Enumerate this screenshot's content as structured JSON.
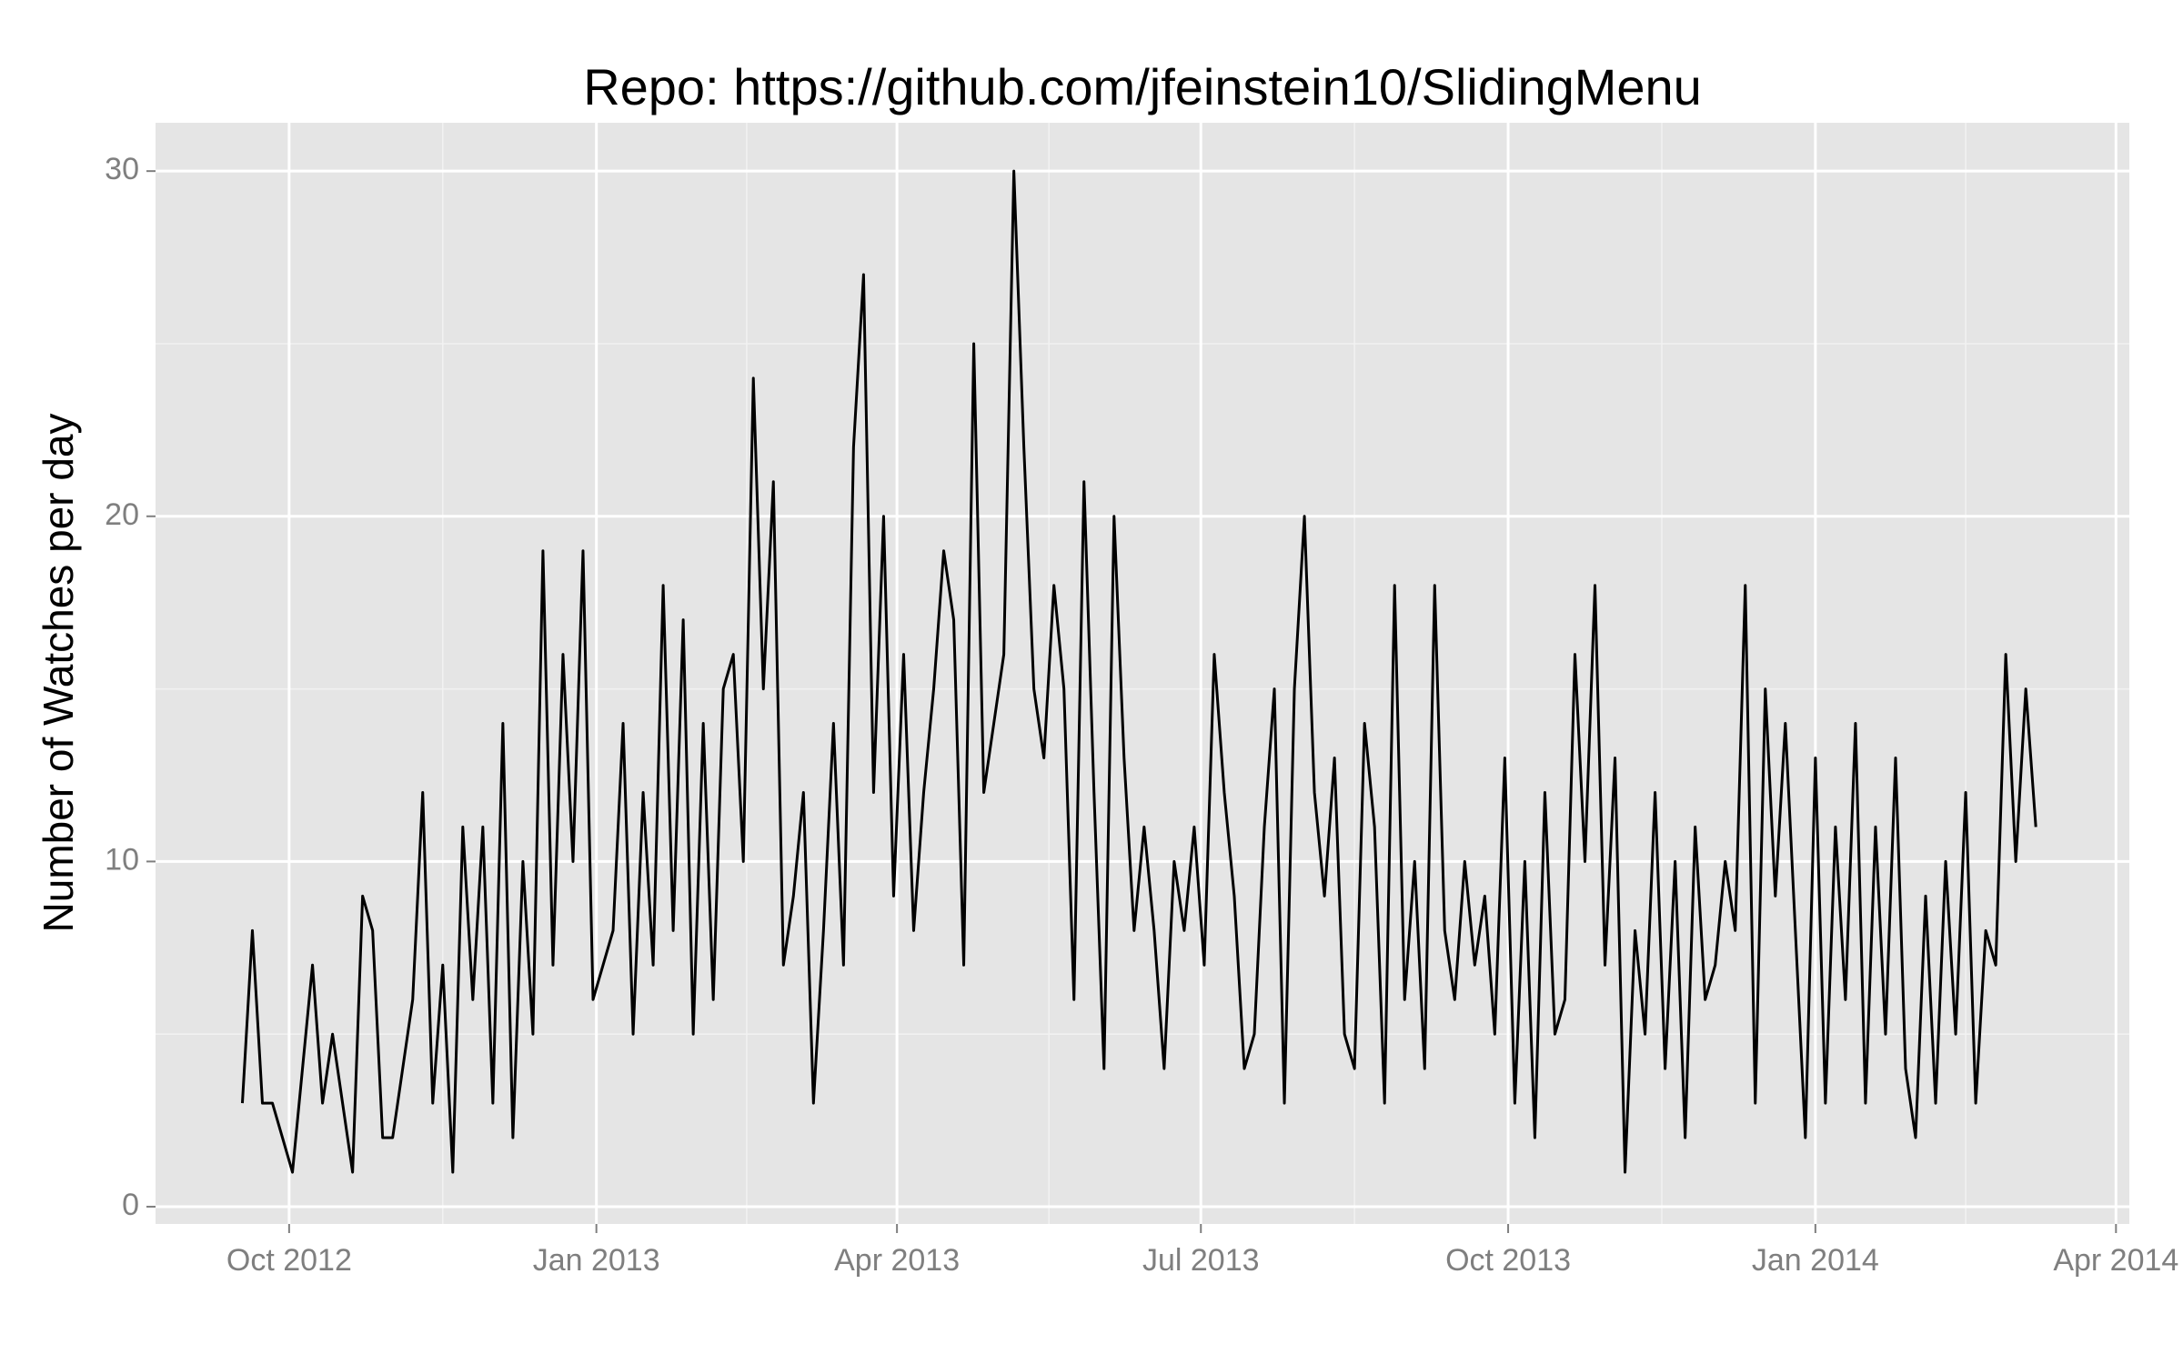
{
  "chart_data": {
    "type": "line",
    "title": "Repo: https://github.com/jfeinstein10/SlidingMenu",
    "y_label": "Number of Watches per day",
    "color": "#000000",
    "x": [
      "2012-09-17",
      "2012-09-20",
      "2012-09-23",
      "2012-09-26",
      "2012-09-29",
      "2012-10-02",
      "2012-10-05",
      "2012-10-08",
      "2012-10-11",
      "2012-10-14",
      "2012-10-17",
      "2012-10-20",
      "2012-10-23",
      "2012-10-26",
      "2012-10-29",
      "2012-11-01",
      "2012-11-04",
      "2012-11-07",
      "2012-11-10",
      "2012-11-13",
      "2012-11-16",
      "2012-11-19",
      "2012-11-22",
      "2012-11-25",
      "2012-11-28",
      "2012-12-01",
      "2012-12-04",
      "2012-12-07",
      "2012-12-10",
      "2012-12-13",
      "2012-12-16",
      "2012-12-19",
      "2012-12-22",
      "2012-12-25",
      "2012-12-28",
      "2012-12-31",
      "2013-01-03",
      "2013-01-06",
      "2013-01-09",
      "2013-01-12",
      "2013-01-15",
      "2013-01-18",
      "2013-01-21",
      "2013-01-24",
      "2013-01-27",
      "2013-01-30",
      "2013-02-02",
      "2013-02-05",
      "2013-02-08",
      "2013-02-11",
      "2013-02-14",
      "2013-02-17",
      "2013-02-20",
      "2013-02-23",
      "2013-02-26",
      "2013-03-01",
      "2013-03-04",
      "2013-03-07",
      "2013-03-10",
      "2013-03-13",
      "2013-03-16",
      "2013-03-19",
      "2013-03-22",
      "2013-03-25",
      "2013-03-28",
      "2013-03-31",
      "2013-04-03",
      "2013-04-06",
      "2013-04-09",
      "2013-04-12",
      "2013-04-15",
      "2013-04-18",
      "2013-04-21",
      "2013-04-24",
      "2013-04-27",
      "2013-04-30",
      "2013-05-03",
      "2013-05-06",
      "2013-05-09",
      "2013-05-12",
      "2013-05-15",
      "2013-05-18",
      "2013-05-21",
      "2013-05-24",
      "2013-05-27",
      "2013-05-30",
      "2013-06-02",
      "2013-06-05",
      "2013-06-08",
      "2013-06-11",
      "2013-06-14",
      "2013-06-17",
      "2013-06-20",
      "2013-06-23",
      "2013-06-26",
      "2013-06-29",
      "2013-07-02",
      "2013-07-05",
      "2013-07-08",
      "2013-07-11",
      "2013-07-14",
      "2013-07-17",
      "2013-07-20",
      "2013-07-23",
      "2013-07-26",
      "2013-07-29",
      "2013-08-01",
      "2013-08-04",
      "2013-08-07",
      "2013-08-10",
      "2013-08-13",
      "2013-08-16",
      "2013-08-19",
      "2013-08-22",
      "2013-08-25",
      "2013-08-28",
      "2013-08-31",
      "2013-09-03",
      "2013-09-06",
      "2013-09-09",
      "2013-09-12",
      "2013-09-15",
      "2013-09-18",
      "2013-09-21",
      "2013-09-24",
      "2013-09-27",
      "2013-09-30",
      "2013-10-03",
      "2013-10-06",
      "2013-10-09",
      "2013-10-12",
      "2013-10-15",
      "2013-10-18",
      "2013-10-21",
      "2013-10-24",
      "2013-10-27",
      "2013-10-30",
      "2013-11-02",
      "2013-11-05",
      "2013-11-08",
      "2013-11-11",
      "2013-11-14",
      "2013-11-17",
      "2013-11-20",
      "2013-11-23",
      "2013-11-26",
      "2013-11-29",
      "2013-12-02",
      "2013-12-05",
      "2013-12-08",
      "2013-12-11",
      "2013-12-14",
      "2013-12-17",
      "2013-12-20",
      "2013-12-23",
      "2013-12-26",
      "2013-12-29",
      "2014-01-01",
      "2014-01-04",
      "2014-01-07",
      "2014-01-10",
      "2014-01-13",
      "2014-01-16",
      "2014-01-19",
      "2014-01-22",
      "2014-01-25",
      "2014-01-28",
      "2014-01-31",
      "2014-02-03",
      "2014-02-06",
      "2014-02-09",
      "2014-02-12",
      "2014-02-15",
      "2014-02-18",
      "2014-02-21",
      "2014-02-24",
      "2014-02-27",
      "2014-03-02",
      "2014-03-05",
      "2014-03-08"
    ],
    "values": [
      3,
      8,
      3,
      3,
      2,
      1,
      4,
      7,
      3,
      5,
      3,
      1,
      9,
      8,
      2,
      2,
      4,
      6,
      12,
      3,
      7,
      1,
      11,
      6,
      11,
      3,
      14,
      2,
      10,
      5,
      19,
      7,
      16,
      10,
      19,
      6,
      7,
      8,
      14,
      5,
      12,
      7,
      18,
      8,
      17,
      5,
      14,
      6,
      15,
      16,
      10,
      24,
      15,
      21,
      7,
      9,
      12,
      3,
      8,
      14,
      7,
      22,
      27,
      12,
      20,
      9,
      16,
      8,
      12,
      15,
      19,
      17,
      7,
      25,
      12,
      14,
      16,
      30,
      22,
      15,
      13,
      18,
      15,
      6,
      21,
      12,
      4,
      20,
      13,
      8,
      11,
      8,
      4,
      10,
      8,
      11,
      7,
      16,
      12,
      9,
      4,
      5,
      11,
      15,
      3,
      15,
      20,
      12,
      9,
      13,
      5,
      4,
      14,
      11,
      3,
      18,
      6,
      10,
      4,
      18,
      8,
      6,
      10,
      7,
      9,
      5,
      13,
      3,
      10,
      2,
      12,
      5,
      6,
      16,
      10,
      18,
      7,
      13,
      1,
      8,
      5,
      12,
      4,
      10,
      2,
      11,
      6,
      7,
      10,
      8,
      18,
      3,
      15,
      9,
      14,
      8,
      2,
      13,
      3,
      11,
      6,
      14,
      3,
      11,
      5,
      13,
      4,
      2,
      9,
      3,
      10,
      5,
      12,
      3,
      8,
      7,
      16,
      10,
      15,
      11
    ],
    "xlim": [
      "2012-08-22",
      "2014-04-05"
    ],
    "xticks": [
      {
        "value": "2012-10-01",
        "label": "Oct 2012"
      },
      {
        "value": "2013-01-01",
        "label": "Jan 2013"
      },
      {
        "value": "2013-04-01",
        "label": "Apr 2013"
      },
      {
        "value": "2013-07-01",
        "label": "Jul 2013"
      },
      {
        "value": "2013-10-01",
        "label": "Oct 2013"
      },
      {
        "value": "2014-01-01",
        "label": "Jan 2014"
      },
      {
        "value": "2014-04-01",
        "label": "Apr 2014"
      }
    ],
    "ylim": [
      -0.5,
      31.4
    ],
    "yticks": [
      0,
      10,
      20,
      30
    ],
    "grid": true
  }
}
